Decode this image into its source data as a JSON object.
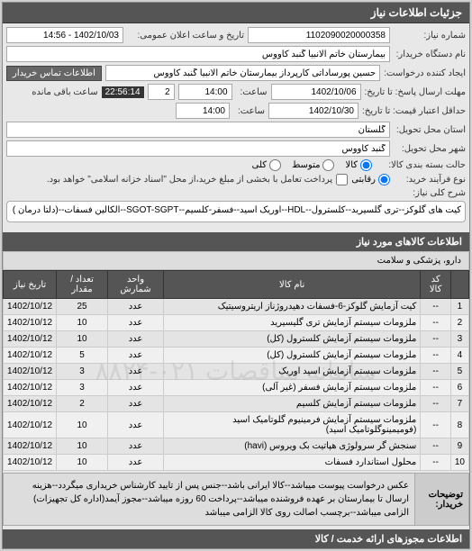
{
  "header": {
    "title": "جزئیات اطلاعات نیاز"
  },
  "form": {
    "request_number_label": "شماره نیاز:",
    "request_number": "1102090020000358",
    "announce_label": "تاریخ و ساعت اعلان عمومی:",
    "announce_value": "1402/10/03 - 14:56",
    "buyer_name_label": "نام دستگاه خریدار:",
    "buyer_name": "بیمارستان خاتم الانبیا گنبد کاووس",
    "requester_label": "ایجاد کننده درخواست:",
    "requester": "حسین پورساداتی کارپرداز بیمارستان خاتم الانبیا گنبد کاووس",
    "contact_btn": "اطلاعات تماس خریدار",
    "deadline_label": "مهلت ارسال پاسخ: تا تاریخ:",
    "deadline_date": "1402/10/06",
    "time_label": "ساعت:",
    "deadline_time": "14:00",
    "remain_pages": "2",
    "remain_timer": "22:56:14",
    "remain_text": "ساعت باقی مانده",
    "validity_label": "حداقل اعتبار قیمت: تا تاریخ:",
    "validity_date": "1402/10/30",
    "validity_time": "14:00",
    "province_label": "استان محل تحویل:",
    "province": "گلستان",
    "city_label": "شهر محل تحویل:",
    "city": "گنبد کاووس",
    "packaging_label": "حالت بسته بندی کالا:",
    "packaging_options": [
      {
        "label": "کالا",
        "checked": true
      },
      {
        "label": "متوسط",
        "checked": false
      },
      {
        "label": "کلی",
        "checked": false
      }
    ],
    "payment_label": "نوع فرآیند خرید:",
    "payment_option": "رقابتی",
    "payment_note": "پرداخت تعامل با بخشی از مبلغ خرید،از محل \"اسناد خزانه اسلامی\" خواهد بود.",
    "desc_label": "شرح کلی نیاز:",
    "desc": "کیت های گلوکز--تری گلسیرید--کلسترول--HDL--اوریک اسید--فسفر-کلسیم--SGOT-SGPT--الکالین فسفات--(دلتا درمان )"
  },
  "goods": {
    "section_title": "اطلاعات کالاهای مورد نیاز",
    "category": "دارو، پزشکی و سلامت",
    "columns": [
      "",
      "کد کالا",
      "نام کالا",
      "واحد شمارش",
      "تعداد / مقدار",
      "تاریخ نیاز"
    ],
    "rows": [
      [
        "1",
        "--",
        "کیت آزمایش گلوکز-6-فسفات دهیدروژناز اریتروسیتیک",
        "عدد",
        "25",
        "1402/10/12"
      ],
      [
        "2",
        "--",
        "ملزومات سیستم آزمایش تری گلیسیرید",
        "عدد",
        "10",
        "1402/10/12"
      ],
      [
        "3",
        "--",
        "ملزومات سیستم آزمایش کلسترول (کل)",
        "عدد",
        "10",
        "1402/10/12"
      ],
      [
        "4",
        "--",
        "ملزومات سیستم آزمایش کلسترول (کل)",
        "عدد",
        "5",
        "1402/10/12"
      ],
      [
        "5",
        "--",
        "ملزومات سیستم آزمایش اسید اوریک",
        "عدد",
        "3",
        "1402/10/12"
      ],
      [
        "6",
        "--",
        "ملزومات سیستم آزمایش فسفر (غیر آلی)",
        "عدد",
        "3",
        "1402/10/12"
      ],
      [
        "7",
        "--",
        "ملزومات سیستم آزمایش کلسیم",
        "عدد",
        "2",
        "1402/10/12"
      ],
      [
        "8",
        "--",
        "ملزومات سیستم آزمایش فرمینیوم گلوتامیک اسید (فومیمینوگلوتامیک اسید)",
        "عدد",
        "10",
        "1402/10/12"
      ],
      [
        "9",
        "--",
        "سنجش گر سرولوژی هپاتیت بک ویروس (havi)",
        "عدد",
        "10",
        "1402/10/12"
      ],
      [
        "10",
        "--",
        "محلول استاندارد فسفات",
        "عدد",
        "10",
        "1402/10/12"
      ]
    ]
  },
  "buyer_note": {
    "label": "توضیحات خریدار:",
    "text": "عکس درخواست پیوست میباشد--کالا ایرانی باشد--جنس پس از تایید کارشناس خریداری میگردد--هزینه ارسال تا بیمارستان بر عهده فروشنده میباشد--پرداخت 60 روزه میباشد--مجوز آیمد(اداره کل تجهیزات) الزامی میباشد--برچسب اصالت روی کالا الزامی میباشد"
  },
  "footer": {
    "title": "اطلاعات مجوزهای ارائه خدمت / کالا"
  },
  "colors": {
    "header_bg": "#555555",
    "header_fg": "#ffffff",
    "panel_bg": "#e8e8e8",
    "row_even": "#f0f0f0",
    "row_odd": "#e4e4e4",
    "border": "#aaaaaa"
  }
}
